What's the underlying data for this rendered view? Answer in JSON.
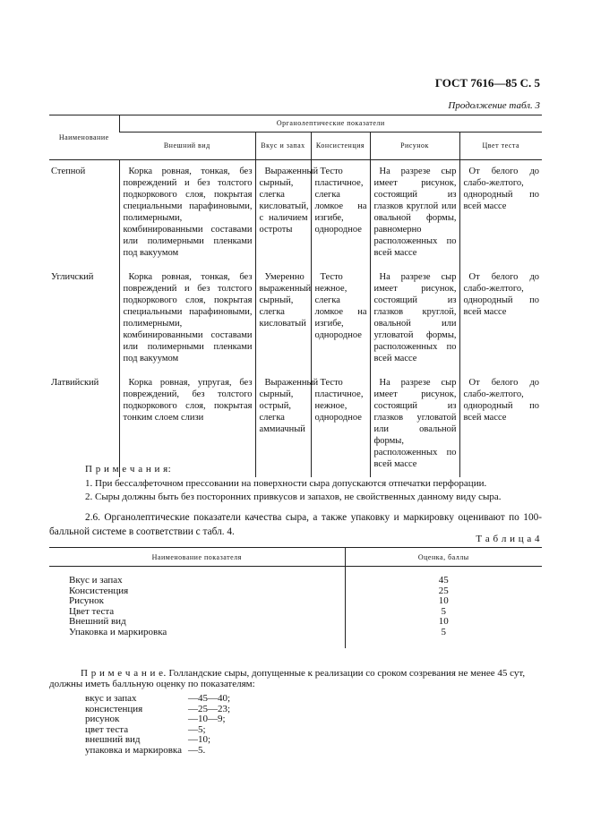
{
  "header": {
    "doc": "ГОСТ 7616—85 С. 5",
    "continuation": "Продолжение табл. 3"
  },
  "table3": {
    "col_name": "Наименование",
    "group": "Органолептические показатели",
    "cols": [
      "Внешний вид",
      "Вкус и запах",
      "Консистенция",
      "Рисунок",
      "Цвет теста"
    ],
    "rows": [
      {
        "name": "Степной",
        "cells": [
          "Корка ровная, тонкая, без повреждений и без толстого подкоркового слоя, покрытая специальными парафиновыми, полимерными, комбинированными составами или полимерными пленками под вакуумом",
          "Выраженный сырный, слегка кисловатый, с наличием остроты",
          "Тесто пластичное, слегка ломкое на изгибе, однородное",
          "На разрезе сыр имеет рисунок, состоящий из глазков круглой или овальной формы, равномерно расположенных по всей массе",
          "От белого до слабо-желтого, однородный по всей массе"
        ]
      },
      {
        "name": "Угличский",
        "cells": [
          "Корка ровная, тонкая, без повреждений и без толстого подкоркового слоя, покрытая специальными парафиновыми, полимерными, комбинированными составами или полимерными пленками под вакуумом",
          "Умеренно выраженный сырный, слегка кисловатый",
          "Тесто нежное, слегка ломкое на изгибе, однородное",
          "На разрезе сыр имеет рисунок, состоящий из глазков круглой, овальной или угловатой формы, расположенных по всей массе",
          "От белого до слабо-желтого, однородный по всей массе"
        ]
      },
      {
        "name": "Латвийский",
        "cells": [
          "Корка ровная, упругая, без повреждений, без толстого подкоркового слоя, покрытая тонким слоем слизи",
          "Выраженный сырный, острый, слегка аммиачный",
          "Тесто пластичное, нежное, однородное",
          "На разрезе сыр имеет рисунок, состоящий из глазков угловатой или овальной формы, расположенных по всей массе",
          "От белого до слабо-желтого, однородный по всей массе"
        ]
      }
    ]
  },
  "notes": {
    "title": "П р и м е ч а н и я:",
    "items": [
      "1. При бессалфеточном прессовании на поверхности сыра допускаются отпечатки перфорации.",
      "2. Сыры должны быть без посторонних привкусов и запахов, не свойственных данному виду сыра."
    ]
  },
  "para": "2.6. Органолептические показатели качества сыра, а также упаковку и маркировку оценивают по 100-балльной системе в соответствии с табл. 4.",
  "table4": {
    "caption": "Т а б л и ц а  4",
    "col1": "Наименование показателя",
    "col2": "Оценка, баллы",
    "rows": [
      [
        "Вкус и запах",
        "45"
      ],
      [
        "Консистенция",
        "25"
      ],
      [
        "Рисунок",
        "10"
      ],
      [
        "Цвет теста",
        "5"
      ],
      [
        "Внешний вид",
        "10"
      ],
      [
        "Упаковка и маркировка",
        "5"
      ]
    ]
  },
  "note2": {
    "label": "П р и м е ч а н и е.",
    "text": " Голландские сыры, допущенные к реализации со сроком созревания не менее 45 сут, должны иметь балльную оценку по показателям:",
    "items": [
      [
        "вкус и запах",
        "—45—40;"
      ],
      [
        "консистенция",
        "—25—23;"
      ],
      [
        "рисунок",
        "—10—9;"
      ],
      [
        "цвет теста",
        "—5;"
      ],
      [
        "внешний вид",
        "—10;"
      ],
      [
        "упаковка и маркировка",
        "—5."
      ]
    ]
  }
}
